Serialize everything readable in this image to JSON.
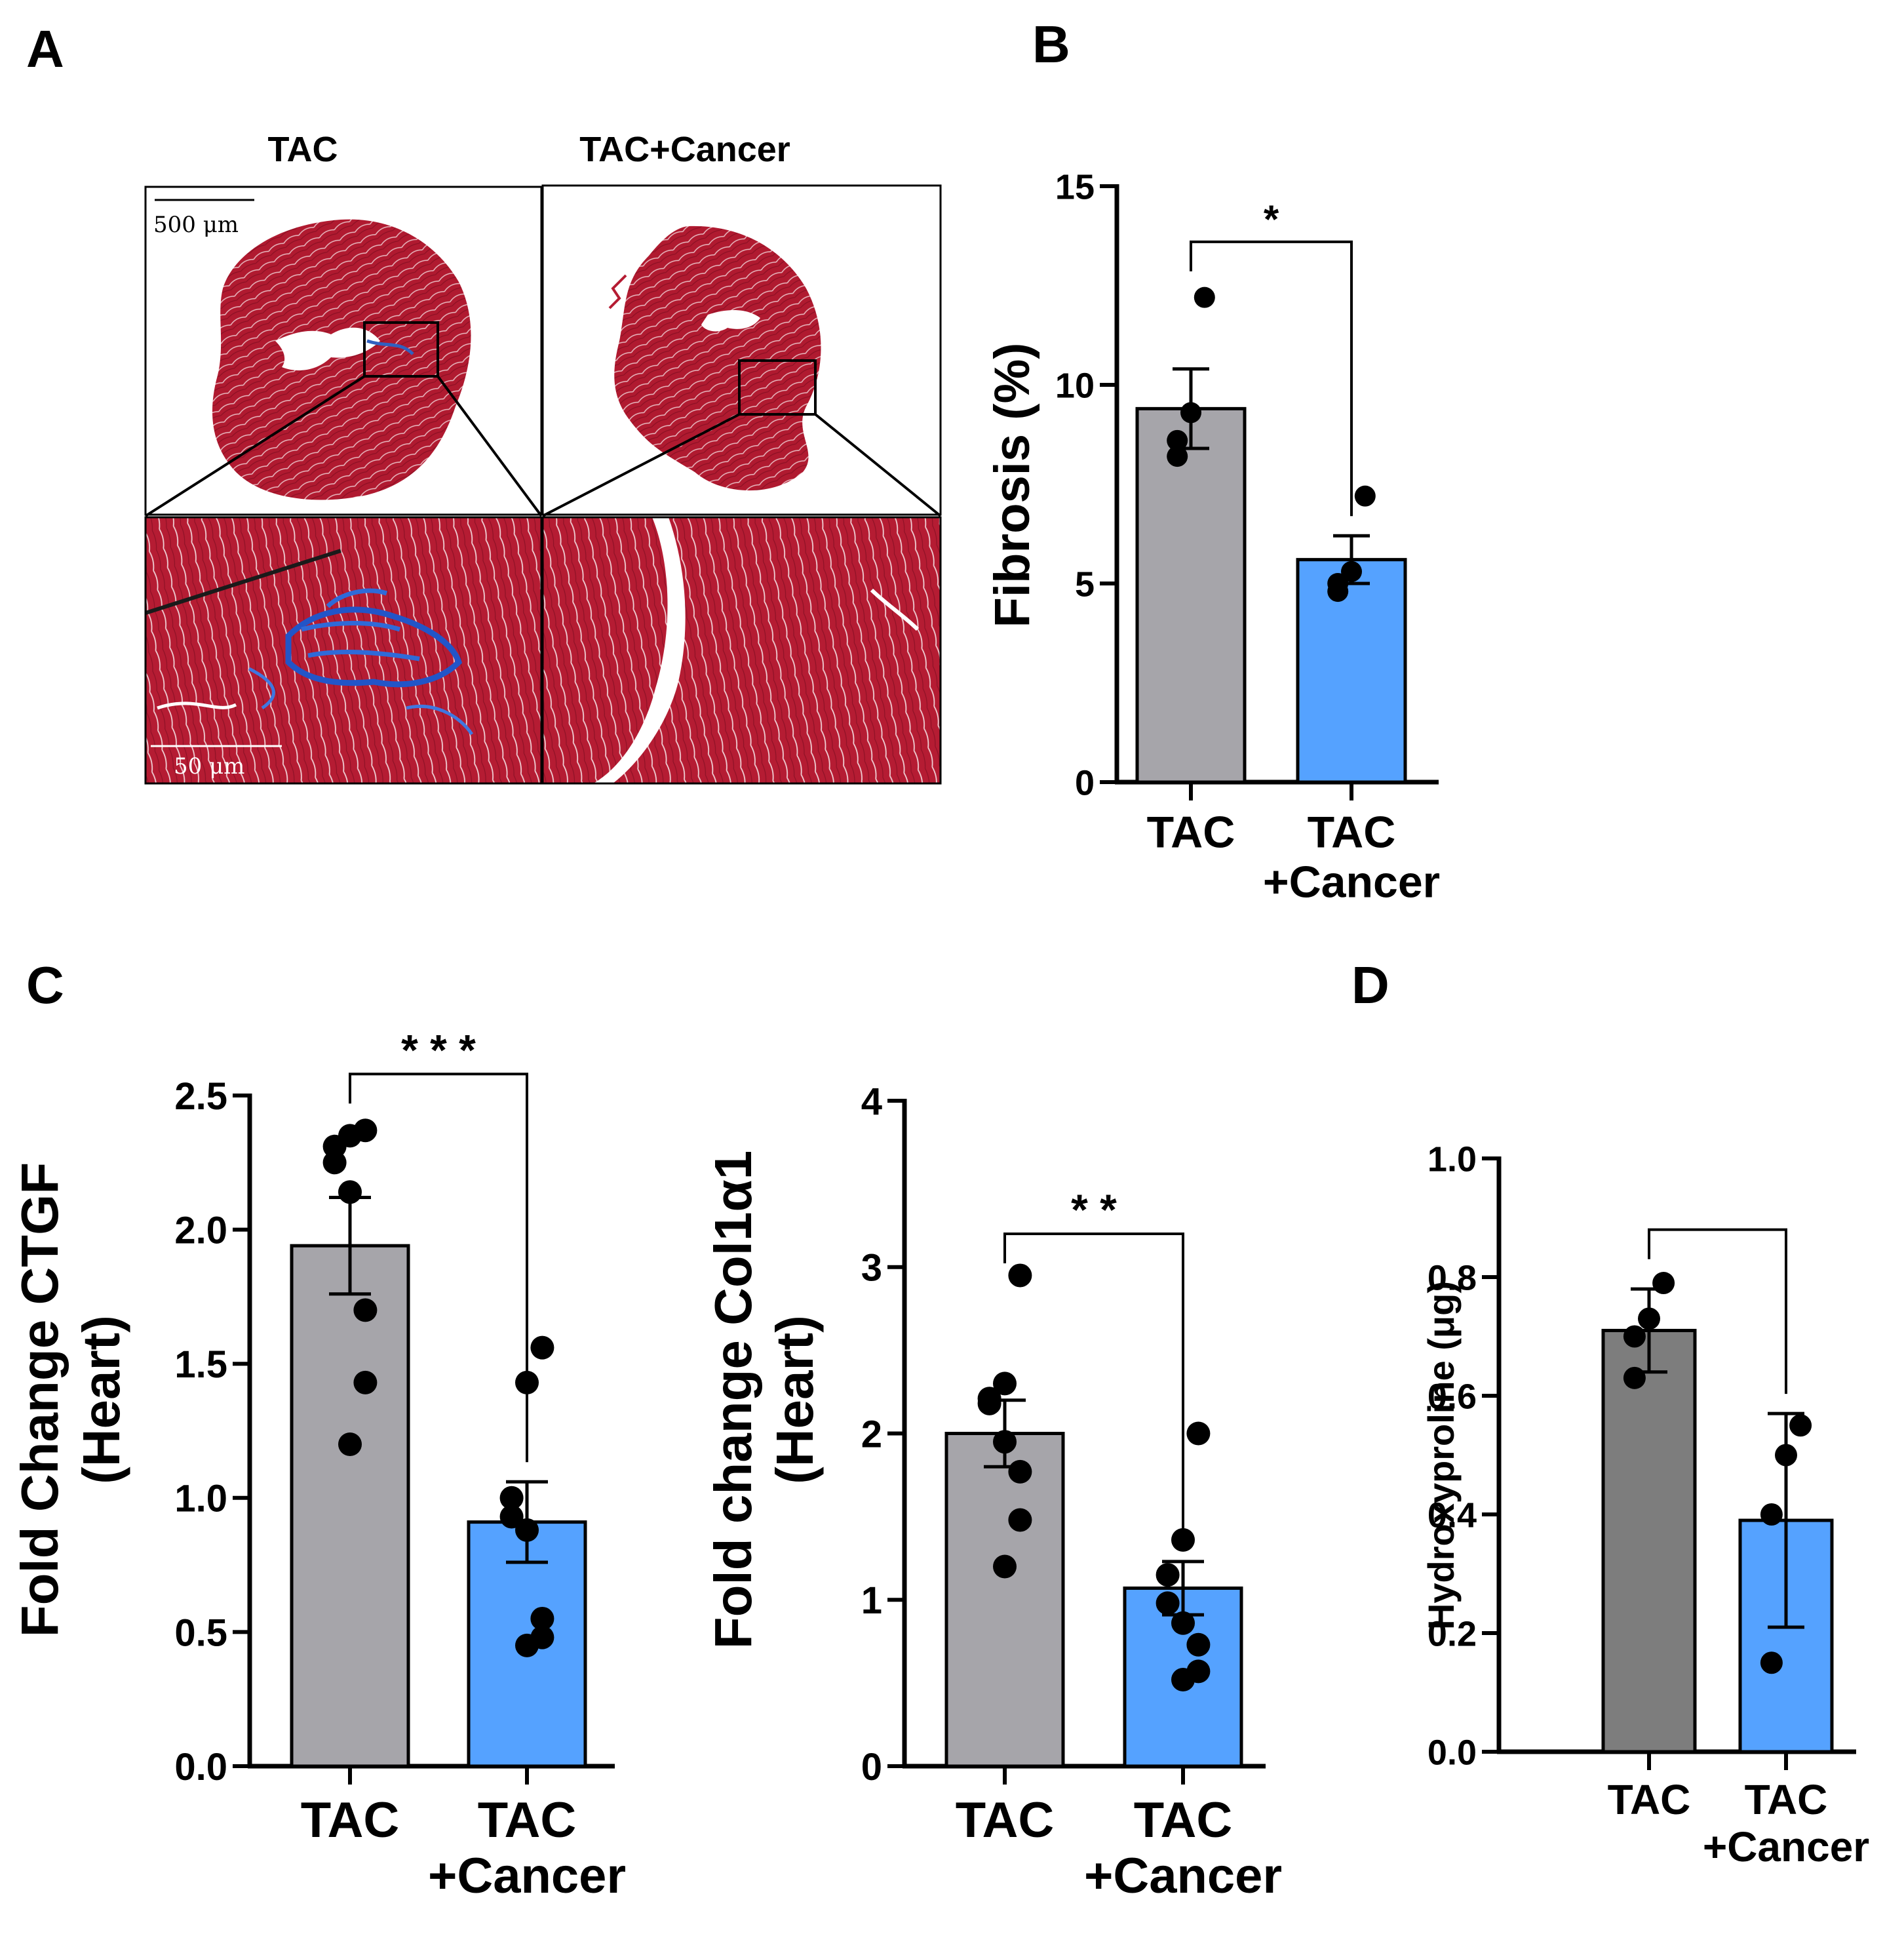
{
  "colors": {
    "tac_gray": "#a6a5aa",
    "tac_dark": "#7d7d7d",
    "cancer_blue": "#55a2ff",
    "tissue_red": "#b51c33",
    "fibrosis_blue": "#2255c8",
    "ink": "#000000"
  },
  "panel_a": {
    "letter": "A",
    "label_tac": "TAC",
    "label_cancer": "TAC+Cancer",
    "scale_top": "500 μm",
    "scale_bottom": "50 μm"
  },
  "chart_data": [
    {
      "id": "B",
      "letter": "B",
      "type": "bar",
      "categories": [
        [
          "TAC"
        ],
        [
          "TAC",
          "+Cancer"
        ]
      ],
      "series": [
        {
          "name": "Fibrosis",
          "values": [
            9.4,
            5.6
          ],
          "sem": [
            1.0,
            0.6
          ]
        }
      ],
      "points": [
        [
          12.2,
          9.3,
          8.6,
          8.2
        ],
        [
          7.2,
          5.3,
          5.0,
          4.8
        ]
      ],
      "bar_colors": [
        "#a6a5aa",
        "#55a2ff"
      ],
      "ylabel_lines": [
        "Fibrosis (%)"
      ],
      "ylim": [
        0,
        15
      ],
      "yticks": [
        0,
        5,
        10,
        15
      ],
      "ytick_labels": [
        "0",
        "5",
        "10",
        "15"
      ],
      "bracket_y": 13.6,
      "significance": "*"
    },
    {
      "id": "C",
      "letter": "C",
      "type": "bar",
      "categories": [
        [
          "TAC"
        ],
        [
          "TAC",
          "+Cancer"
        ]
      ],
      "series": [
        {
          "name": "Fold Change CTGF",
          "values": [
            1.94,
            0.91
          ],
          "sem": [
            0.18,
            0.15
          ]
        }
      ],
      "points": [
        [
          2.37,
          2.35,
          2.31,
          2.25,
          2.14,
          1.7,
          1.43,
          1.2
        ],
        [
          1.56,
          1.43,
          1.0,
          0.93,
          0.88,
          0.55,
          0.48,
          0.45
        ]
      ],
      "bar_colors": [
        "#a6a5aa",
        "#55a2ff"
      ],
      "ylabel_lines": [
        "Fold Change CTGF",
        "(Heart)"
      ],
      "ylim": [
        0,
        2.5
      ],
      "yticks": [
        0,
        0.5,
        1.0,
        1.5,
        2.0,
        2.5
      ],
      "ytick_labels": [
        "0.0",
        "0.5",
        "1.0",
        "1.5",
        "2.0",
        "2.5"
      ],
      "bracket_y": 2.58,
      "significance": "* * *"
    },
    {
      "id": "C2",
      "type": "bar",
      "categories": [
        [
          "TAC"
        ],
        [
          "TAC",
          "+Cancer"
        ]
      ],
      "series": [
        {
          "name": "Fold change Col1α1",
          "values": [
            2.0,
            1.07
          ],
          "sem": [
            0.2,
            0.16
          ]
        }
      ],
      "points": [
        [
          2.95,
          2.3,
          2.21,
          2.18,
          1.95,
          1.77,
          1.48,
          1.2
        ],
        [
          2.0,
          1.36,
          1.15,
          0.98,
          0.86,
          0.73,
          0.57,
          0.52
        ]
      ],
      "bar_colors": [
        "#a6a5aa",
        "#55a2ff"
      ],
      "ylabel_lines": [
        "Fold change Col1α1",
        "(Heart)"
      ],
      "ylim": [
        0,
        4
      ],
      "yticks": [
        0,
        1,
        2,
        3,
        4
      ],
      "ytick_labels": [
        "0",
        "1",
        "2",
        "3",
        "4"
      ],
      "bracket_y": 3.2,
      "significance": "* *"
    },
    {
      "id": "D",
      "letter": "D",
      "type": "bar",
      "categories": [
        [
          "TAC"
        ],
        [
          "TAC",
          "+Cancer"
        ]
      ],
      "series": [
        {
          "name": "Hydroxyproline",
          "values": [
            0.71,
            0.39
          ],
          "sd": [
            0.07,
            0.18
          ]
        }
      ],
      "points": [
        [
          0.79,
          0.73,
          0.7,
          0.63
        ],
        [
          0.55,
          0.5,
          0.4,
          0.15
        ]
      ],
      "bar_colors": [
        "#7d7d7d",
        "#55a2ff"
      ],
      "ylabel_lines": [
        "Hydroxyproline (μg)"
      ],
      "ylim": [
        0,
        1.0
      ],
      "yticks": [
        0,
        0.2,
        0.4,
        0.6,
        0.8,
        1.0
      ],
      "ytick_labels": [
        "0.0",
        "0.2",
        "0.4",
        "0.6",
        "0.8",
        "1.0"
      ],
      "bracket_y": 0.88,
      "significance": ""
    }
  ]
}
